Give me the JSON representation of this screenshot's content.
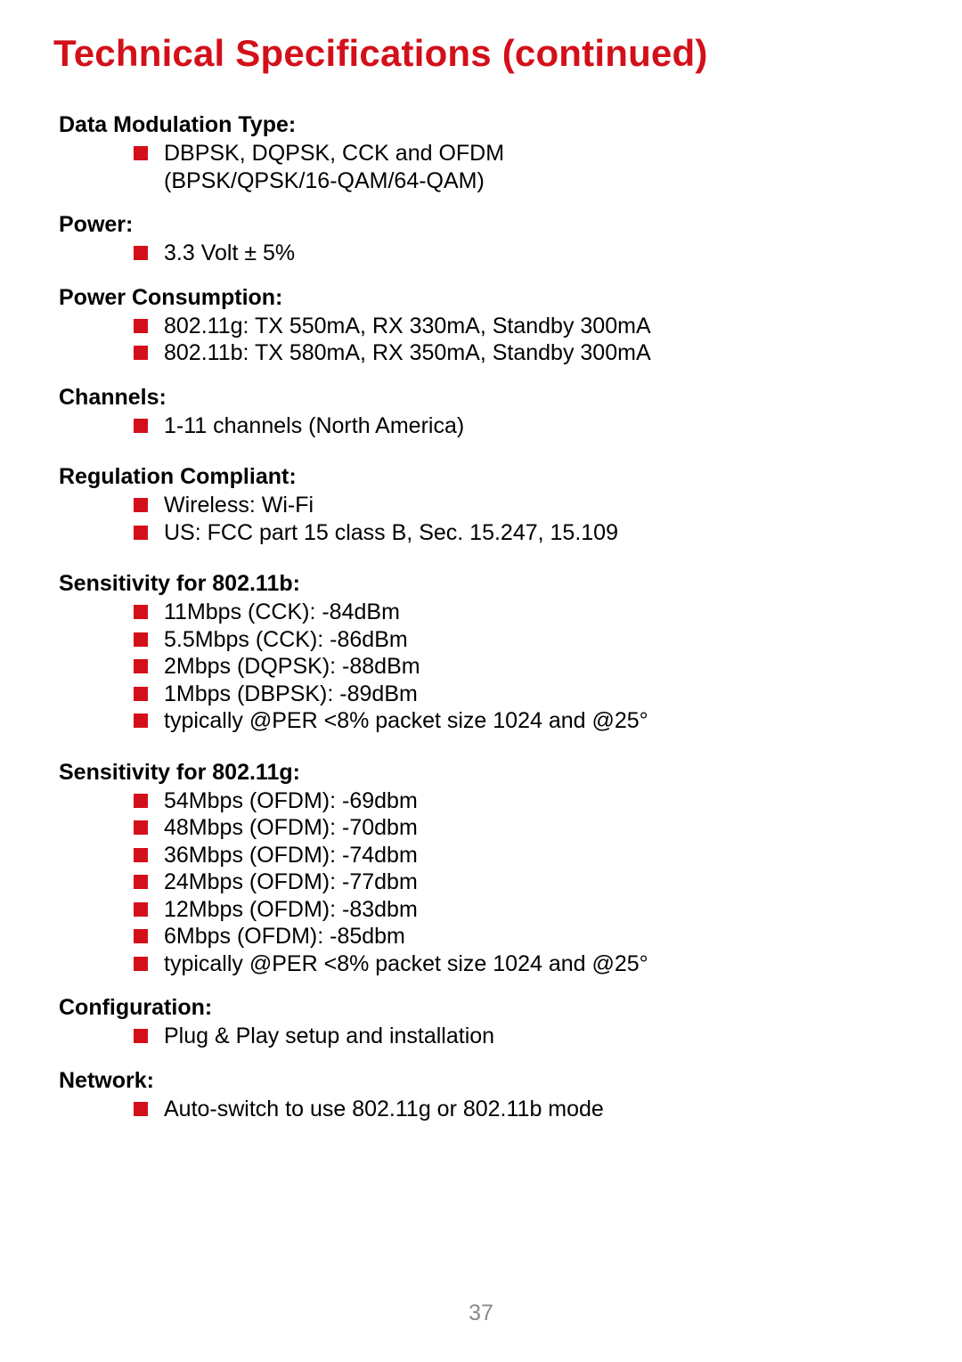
{
  "title": "Technical Specifications (continued)",
  "pageNumber": "37",
  "colors": {
    "accent": "#d31019",
    "text": "#000000",
    "pageNum": "#8a8a8a",
    "background": "#ffffff"
  },
  "sections": [
    {
      "heading": "Data Modulation Type:",
      "items": [
        {
          "text": "DBPSK, DQPSK, CCK and OFDM",
          "sub": "(BPSK/QPSK/16-QAM/64-QAM)"
        }
      ]
    },
    {
      "heading": "Power:",
      "items": [
        {
          "text": "3.3 Volt ± 5%"
        }
      ]
    },
    {
      "heading": "Power Consumption:",
      "items": [
        {
          "text": "802.11g: TX 550mA, RX 330mA, Standby 300mA"
        },
        {
          "text": "802.11b: TX 580mA, RX 350mA, Standby 300mA"
        }
      ]
    },
    {
      "heading": "Channels:",
      "items": [
        {
          "text": "1-11 channels (North America)"
        }
      ]
    },
    {
      "heading": "Regulation Compliant:",
      "items": [
        {
          "text": "Wireless:  Wi-Fi"
        },
        {
          "text": "US: FCC part 15 class B, Sec. 15.247, 15.109"
        }
      ]
    },
    {
      "heading": "Sensitivity for 802.11b:",
      "items": [
        {
          "text": "11Mbps (CCK): -84dBm"
        },
        {
          "text": "5.5Mbps (CCK): -86dBm"
        },
        {
          "text": "2Mbps (DQPSK): -88dBm"
        },
        {
          "text": "1Mbps (DBPSK): -89dBm"
        },
        {
          "text": "typically @PER <8% packet size 1024 and @25°"
        }
      ]
    },
    {
      "heading": "Sensitivity for 802.11g:",
      "items": [
        {
          "text": "54Mbps (OFDM): -69dbm"
        },
        {
          "text": "48Mbps (OFDM): -70dbm"
        },
        {
          "text": "36Mbps (OFDM): -74dbm"
        },
        {
          "text": "24Mbps (OFDM): -77dbm"
        },
        {
          "text": "12Mbps (OFDM): -83dbm"
        },
        {
          "text": "6Mbps (OFDM): -85dbm"
        },
        {
          "text": "typically @PER <8% packet size 1024 and @25°"
        }
      ]
    },
    {
      "heading": "Configuration:",
      "items": [
        {
          "text": "Plug & Play setup and installation"
        }
      ]
    },
    {
      "heading": "Network:",
      "items": [
        {
          "text": "Auto-switch to use 802.11g or 802.11b mode"
        }
      ]
    }
  ]
}
